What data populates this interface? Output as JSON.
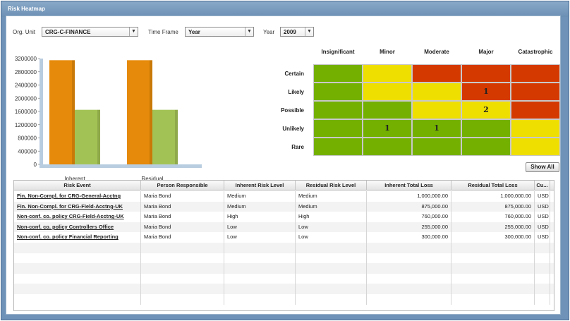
{
  "window": {
    "title": "Risk Heatmap"
  },
  "filters": {
    "org_unit": {
      "label": "Org. Unit",
      "value": "CRG-C-FINANCE"
    },
    "time_frame": {
      "label": "Time Frame",
      "value": "Year"
    },
    "year": {
      "label": "Year",
      "value": "2009"
    }
  },
  "chart_data": {
    "type": "bar",
    "categories": [
      "Inherent",
      "Residual"
    ],
    "series": [
      {
        "values": [
          3150000,
          3150000
        ],
        "color": "#e58a0a"
      },
      {
        "values": [
          1650000,
          1650000
        ],
        "color": "#a3c255"
      }
    ],
    "ylim": [
      0,
      3200000
    ],
    "yticks": [
      "3200000",
      "2800000",
      "2400000",
      "2000000",
      "1600000",
      "1200000",
      "800000",
      "400000",
      "0"
    ],
    "grid": false
  },
  "heatmap": {
    "columns": [
      "Insignificant",
      "Minor",
      "Moderate",
      "Major",
      "Catastrophic"
    ],
    "rows": [
      {
        "label": "Certain",
        "cells": [
          {
            "c": "#73b000",
            "v": ""
          },
          {
            "c": "#efdf00",
            "v": ""
          },
          {
            "c": "#d43a00",
            "v": ""
          },
          {
            "c": "#d43a00",
            "v": ""
          },
          {
            "c": "#d43a00",
            "v": ""
          }
        ]
      },
      {
        "label": "Likely",
        "cells": [
          {
            "c": "#73b000",
            "v": ""
          },
          {
            "c": "#efdf00",
            "v": ""
          },
          {
            "c": "#efdf00",
            "v": ""
          },
          {
            "c": "#d43a00",
            "v": "1"
          },
          {
            "c": "#d43a00",
            "v": ""
          }
        ]
      },
      {
        "label": "Possible",
        "cells": [
          {
            "c": "#73b000",
            "v": ""
          },
          {
            "c": "#73b000",
            "v": ""
          },
          {
            "c": "#efdf00",
            "v": ""
          },
          {
            "c": "#efdf00",
            "v": "2"
          },
          {
            "c": "#d43a00",
            "v": ""
          }
        ]
      },
      {
        "label": "Unlikely",
        "cells": [
          {
            "c": "#73b000",
            "v": ""
          },
          {
            "c": "#73b000",
            "v": "1"
          },
          {
            "c": "#73b000",
            "v": "1"
          },
          {
            "c": "#73b000",
            "v": ""
          },
          {
            "c": "#efdf00",
            "v": ""
          }
        ]
      },
      {
        "label": "Rare",
        "cells": [
          {
            "c": "#73b000",
            "v": ""
          },
          {
            "c": "#73b000",
            "v": ""
          },
          {
            "c": "#73b000",
            "v": ""
          },
          {
            "c": "#73b000",
            "v": ""
          },
          {
            "c": "#efdf00",
            "v": ""
          }
        ]
      }
    ]
  },
  "show_all_label": "Show All",
  "table": {
    "headers": [
      "Risk Event",
      "Person Responsible",
      "Inherent Risk Level",
      "Residual Risk Level",
      "Inherent Total Loss",
      "Residual Total Loss",
      "Cu..."
    ],
    "rows": [
      [
        "Fin. Non-Compl. for CRG-General-Acctng",
        "Maria Bond",
        "Medium",
        "Medium",
        "1,000,000.00",
        "1,000,000.00",
        "USD"
      ],
      [
        "Fin. Non-Compl. for CRG-Field-Acctng-UK",
        "Maria Bond",
        "Medium",
        "Medium",
        "875,000.00",
        "875,000.00",
        "USD"
      ],
      [
        "Non-conf. co. policy CRG-Field-Acctng-UK",
        "Maria Bond",
        "High",
        "High",
        "760,000.00",
        "760,000.00",
        "USD"
      ],
      [
        "Non-conf. co. policy Controllers Office",
        "Maria Bond",
        "Low",
        "Low",
        "255,000.00",
        "255,000.00",
        "USD"
      ],
      [
        "Non-conf. co. policy Financial Reporting",
        "Maria Bond",
        "Low",
        "Low",
        "300,000.00",
        "300,000.00",
        "USD"
      ]
    ]
  }
}
